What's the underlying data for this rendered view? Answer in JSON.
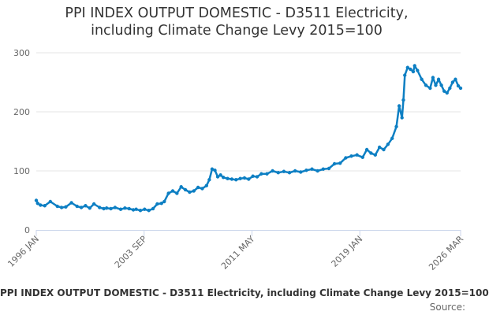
{
  "title": {
    "line1": "PPI INDEX OUTPUT DOMESTIC - D3511 Electricity,",
    "line2": "including Climate Change Levy 2015=100"
  },
  "legend_text": "PPI INDEX OUTPUT DOMESTIC - D3511 Electricity, including Climate Change Levy 2015=100",
  "source_text": "Source:",
  "chart_data": {
    "type": "line",
    "title": "PPI INDEX OUTPUT DOMESTIC - D3511 Electricity, including Climate Change Levy 2015=100",
    "xlabel": "",
    "ylabel": "",
    "ylim": [
      0,
      300
    ],
    "yticks": [
      0,
      100,
      200,
      300
    ],
    "xlim": [
      1996.0,
      2026.167
    ],
    "xtick_labels": [
      "1996 JAN",
      "2003 SEP",
      "2011 MAY",
      "2019 JAN",
      "2026 MAR"
    ],
    "xtick_positions": [
      1996.0,
      2003.667,
      2011.333,
      2019.0,
      2026.167
    ],
    "grid": true,
    "legend_position": "bottom",
    "color": "#0d7fc3",
    "series": [
      {
        "name": "PPI INDEX OUTPUT DOMESTIC - D3511 Electricity, including Climate Change Levy 2015=100",
        "x": [
          1996.0,
          1996.1,
          1996.3,
          1996.6,
          1997.0,
          1997.5,
          1997.8,
          1998.1,
          1998.5,
          1998.9,
          1999.2,
          1999.5,
          1999.8,
          2000.1,
          2000.5,
          2000.8,
          2001.0,
          2001.3,
          2001.6,
          2002.0,
          2002.3,
          2002.6,
          2002.9,
          2003.1,
          2003.4,
          2003.7,
          2004.0,
          2004.3,
          2004.6,
          2004.9,
          2005.1,
          2005.4,
          2005.7,
          2006.0,
          2006.3,
          2006.6,
          2006.9,
          2007.2,
          2007.5,
          2007.8,
          2008.1,
          2008.3,
          2008.5,
          2008.7,
          2008.9,
          2009.1,
          2009.3,
          2009.6,
          2009.9,
          2010.2,
          2010.5,
          2010.8,
          2011.1,
          2011.4,
          2011.7,
          2012.0,
          2012.4,
          2012.8,
          2013.2,
          2013.6,
          2014.0,
          2014.4,
          2014.8,
          2015.2,
          2015.6,
          2016.0,
          2016.4,
          2016.8,
          2017.2,
          2017.6,
          2018.0,
          2018.4,
          2018.8,
          2019.2,
          2019.5,
          2019.8,
          2020.1,
          2020.4,
          2020.7,
          2021.0,
          2021.3,
          2021.6,
          2021.8,
          2022.0,
          2022.1,
          2022.2,
          2022.4,
          2022.6,
          2022.8,
          2022.9,
          2023.1,
          2023.4,
          2023.7,
          2024.0,
          2024.2,
          2024.4,
          2024.6,
          2024.8,
          2025.0,
          2025.2,
          2025.4,
          2025.6,
          2025.8,
          2026.0,
          2026.167
        ],
        "y": [
          50,
          45,
          42,
          41,
          48,
          40,
          38,
          39,
          46,
          40,
          38,
          41,
          37,
          44,
          38,
          36,
          37,
          36,
          38,
          35,
          37,
          36,
          34,
          35,
          33,
          35,
          33,
          36,
          44,
          45,
          48,
          62,
          66,
          62,
          73,
          68,
          64,
          66,
          72,
          70,
          75,
          85,
          103,
          101,
          90,
          93,
          89,
          87,
          86,
          85,
          87,
          88,
          86,
          91,
          90,
          95,
          95,
          100,
          97,
          99,
          97,
          100,
          98,
          101,
          103,
          100,
          103,
          104,
          112,
          113,
          122,
          125,
          127,
          123,
          136,
          130,
          127,
          140,
          136,
          145,
          155,
          175,
          210,
          190,
          220,
          262,
          275,
          272,
          268,
          278,
          270,
          255,
          245,
          240,
          258,
          245,
          255,
          245,
          235,
          232,
          240,
          250,
          255,
          244,
          240
        ]
      }
    ]
  }
}
